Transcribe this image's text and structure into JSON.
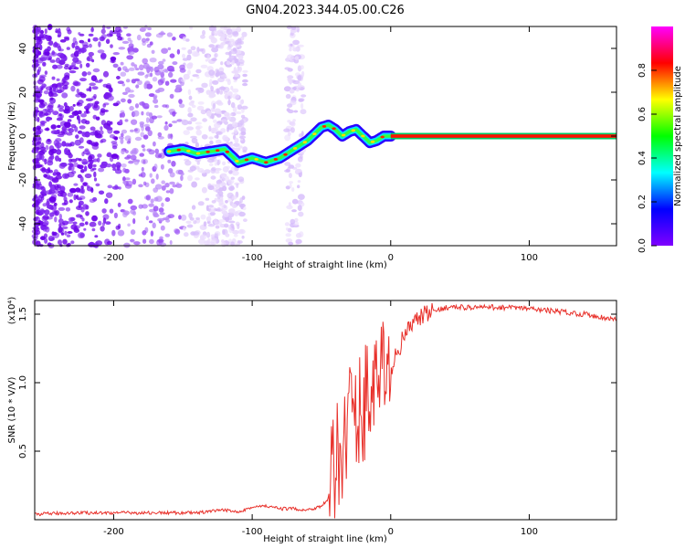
{
  "title": "GN04.2023.344.05.00.C26",
  "chart_data": [
    {
      "type": "heatmap",
      "xlabel": "Height of straight line (km)",
      "ylabel": "Frequency (Hz)",
      "xlim": [
        -257,
        163
      ],
      "ylim": [
        -50,
        50
      ],
      "xticks": [
        -200,
        -100,
        0,
        100
      ],
      "yticks": [
        -40,
        -20,
        0,
        20,
        40
      ],
      "colorbar": {
        "label": "Normalized spectral amplitude",
        "range": [
          0,
          1
        ],
        "ticks": [
          "0.0",
          "0.2",
          "0.4",
          "0.6",
          "0.8"
        ],
        "tick_values": [
          0.0,
          0.2,
          0.4,
          0.6,
          0.8
        ],
        "colormap": [
          "#8000ff",
          "#0000ff",
          "#00ffff",
          "#00ff00",
          "#ffff00",
          "#ff0000",
          "#ff00ff"
        ]
      },
      "ridge": {
        "x": [
          -160,
          -150,
          -140,
          -130,
          -120,
          -115,
          -110,
          -100,
          -90,
          -80,
          -70,
          -60,
          -50,
          -45,
          -40,
          -35,
          -30,
          -25,
          -20,
          -15,
          -10,
          -5,
          0,
          163
        ],
        "y": [
          -7,
          -6,
          -8,
          -7,
          -6,
          -9,
          -12,
          -10,
          -12,
          -10,
          -6,
          -2,
          4,
          5,
          3,
          0,
          2,
          3,
          0,
          -3,
          -2,
          0,
          0,
          0
        ]
      }
    },
    {
      "type": "line",
      "xlabel": "Height of straight line (km)",
      "ylabel": "SNR (10 * V/V)",
      "yunit": "(x10⁴)",
      "xlim": [
        -257,
        163
      ],
      "ylim": [
        0,
        1.6
      ],
      "xticks": [
        -200,
        -100,
        0,
        100
      ],
      "yticks": [
        "0.5",
        "1.0",
        "1.5"
      ],
      "ytick_values": [
        0.5,
        1.0,
        1.5
      ],
      "color": "#e8302a",
      "series": [
        {
          "x": [
            -257,
            -230,
            -200,
            -170,
            -140,
            -120,
            -110,
            -100,
            -90,
            -80,
            -70,
            -60,
            -50,
            -45,
            -40,
            -35,
            -30,
            -25,
            -20,
            -15,
            -10,
            -5,
            0,
            10,
            20,
            30,
            40,
            60,
            80,
            100,
            120,
            140,
            163
          ],
          "y": [
            0.04,
            0.05,
            0.05,
            0.05,
            0.05,
            0.07,
            0.06,
            0.09,
            0.1,
            0.08,
            0.08,
            0.07,
            0.1,
            0.15,
            0.35,
            0.6,
            0.8,
            0.7,
            0.85,
            0.95,
            1.0,
            1.05,
            1.1,
            1.35,
            1.47,
            1.52,
            1.55,
            1.55,
            1.55,
            1.54,
            1.52,
            1.5,
            1.46
          ]
        }
      ]
    }
  ]
}
